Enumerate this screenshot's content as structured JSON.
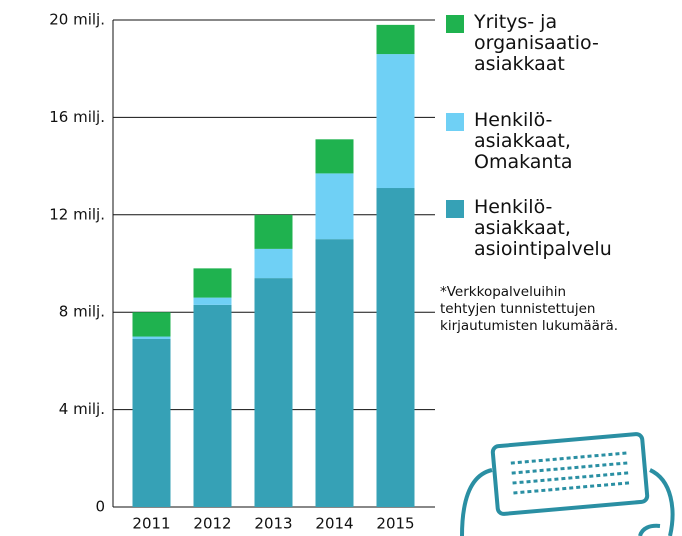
{
  "chart_data": {
    "type": "stacked_bar",
    "categories": [
      "2011",
      "2012",
      "2013",
      "2014",
      "2015"
    ],
    "series": [
      {
        "name": "Yritys- ja\norganisaatio-\nasiakkaat",
        "color": "#1fb24f",
        "values": [
          1.0,
          1.2,
          1.4,
          1.4,
          1.2
        ]
      },
      {
        "name": "Henkilö-\nasiakkaat,\nOmakanta",
        "color": "#6fd0f5",
        "values": [
          0.1,
          0.3,
          1.2,
          2.7,
          5.5
        ]
      },
      {
        "name": "Henkilö-\nasiakkaat,\nasiointipalvelu",
        "color": "#36a1b6",
        "values": [
          6.9,
          8.3,
          9.4,
          11.0,
          13.1
        ]
      }
    ],
    "ylim": [
      0,
      20
    ],
    "yticks": [
      0,
      {
        "value": 4,
        "label": "4 milj."
      },
      {
        "value": 8,
        "label": "8 milj."
      },
      {
        "value": 12,
        "label": "12 milj."
      },
      {
        "value": 16,
        "label": "16 milj."
      },
      {
        "value": 20,
        "label": "20 milj."
      }
    ],
    "grid": true,
    "annotation": "*Verkkopalveluihin\ntehtyjen tunnistettujen\nkirjautumisten lukumäärä."
  }
}
